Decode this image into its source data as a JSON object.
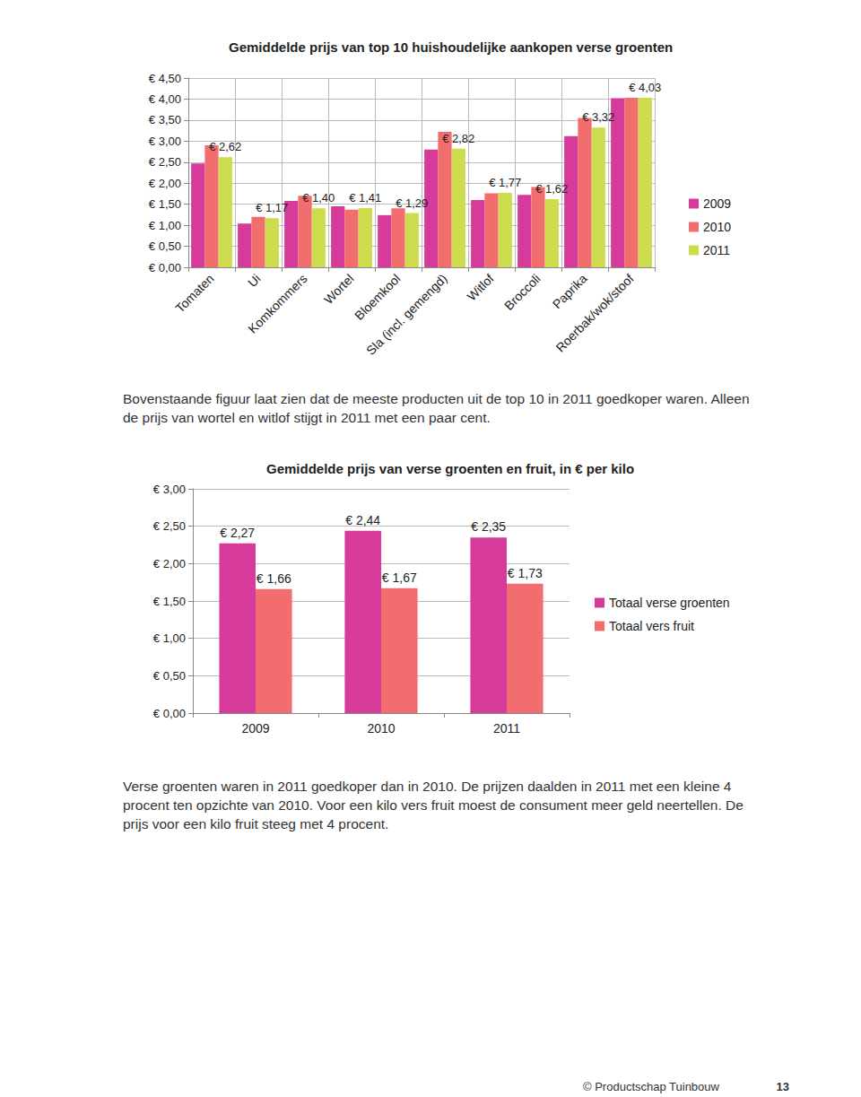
{
  "chart_data": [
    {
      "type": "bar",
      "title": "Gemiddelde prijs van top 10 huishoudelijke aankopen verse groenten",
      "categories": [
        "Tomaten",
        "Ui",
        "Komkommers",
        "Wortel",
        "Bloemkool",
        "Sla (incl. gemengd)",
        "Witlof",
        "Broccoli",
        "Paprika",
        "Roerbak/wok/stoof"
      ],
      "series": [
        {
          "name": "2009",
          "color": "#d63b9c",
          "values": [
            2.47,
            1.04,
            1.58,
            1.45,
            1.24,
            2.8,
            1.6,
            1.72,
            3.12,
            4.02
          ]
        },
        {
          "name": "2010",
          "color": "#f26d6d",
          "values": [
            2.9,
            1.2,
            1.7,
            1.37,
            1.4,
            3.22,
            1.76,
            1.91,
            3.55,
            4.03
          ]
        },
        {
          "name": "2011",
          "color": "#cddc4d",
          "values": [
            2.62,
            1.17,
            1.4,
            1.41,
            1.29,
            2.82,
            1.77,
            1.62,
            3.32,
            4.03
          ],
          "value_labels": [
            "€ 2,62",
            "€ 1,17",
            "€ 1,40",
            "€ 1,41",
            "€ 1,29",
            "€ 2,82",
            "€ 1,77",
            "€ 1,62",
            "€ 3,32",
            "€ 4,03"
          ]
        }
      ],
      "ylim": [
        0,
        4.5
      ],
      "yticks": [
        {
          "value": 0,
          "label": "€ 0,00"
        },
        {
          "value": 0.5,
          "label": "€ 0,50"
        },
        {
          "value": 1,
          "label": "€ 1,00"
        },
        {
          "value": 1.5,
          "label": "€ 1,50"
        },
        {
          "value": 2,
          "label": "€ 2,00"
        },
        {
          "value": 2.5,
          "label": "€ 2,50"
        },
        {
          "value": 3,
          "label": "€ 3,00"
        },
        {
          "value": 3.5,
          "label": "€ 3,50"
        },
        {
          "value": 4,
          "label": "€ 4,00"
        },
        {
          "value": 4.5,
          "label": "€ 4,50"
        }
      ],
      "grid": true,
      "legend": "right"
    },
    {
      "type": "bar",
      "title": "Gemiddelde prijs van verse groenten en fruit, in € per kilo",
      "categories": [
        "2009",
        "2010",
        "2011"
      ],
      "series": [
        {
          "name": "Totaal verse groenten",
          "color": "#d63b9c",
          "values": [
            2.27,
            2.44,
            2.35
          ],
          "value_labels": [
            "€ 2,27",
            "€ 2,44",
            "€ 2,35"
          ]
        },
        {
          "name": "Totaal vers fruit",
          "color": "#f26d6d",
          "values": [
            1.66,
            1.67,
            1.73
          ],
          "value_labels": [
            "€ 1,66",
            "€ 1,67",
            "€ 1,73"
          ]
        }
      ],
      "ylim": [
        0,
        3
      ],
      "yticks": [
        {
          "value": 0,
          "label": "€ 0,00"
        },
        {
          "value": 0.5,
          "label": "€ 0,50"
        },
        {
          "value": 1,
          "label": "€ 1,00"
        },
        {
          "value": 1.5,
          "label": "€ 1,50"
        },
        {
          "value": 2,
          "label": "€ 2,00"
        },
        {
          "value": 2.5,
          "label": "€ 2,50"
        },
        {
          "value": 3,
          "label": "€ 3,00"
        }
      ],
      "grid": true,
      "legend": "right",
      "data_labels": true
    }
  ],
  "paragraphs": [
    "Bovenstaande figuur laat zien dat de meeste producten uit de top 10 in 2011 goedkoper waren. Alleen de prijs van wortel en witlof stijgt in 2011 met een paar cent.",
    "Verse groenten waren in 2011 goedkoper dan in 2010. De prijzen daalden in 2011 met een kleine 4 procent ten opzichte van 2010. Voor een kilo vers fruit moest de consument meer geld neertellen. De prijs voor een kilo fruit steeg met 4 procent."
  ],
  "footer": {
    "text": "© Productschap Tuinbouw",
    "page": "13"
  }
}
